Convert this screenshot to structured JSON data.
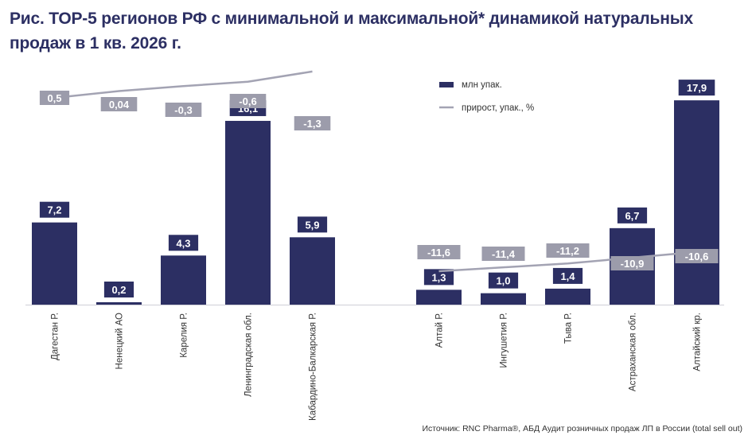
{
  "title": "Рис. ТОР-5 регионов РФ с минимальной и максимальной* динамикой  натуральных продаж в 1 кв. 2026 г.",
  "source": "Источник: RNC Pharma®, АБД Аудит розничных продаж ЛП в России (total sell out)",
  "colors": {
    "bar": "#2c2f63",
    "line": "#a3a3b3",
    "label_bar": "#2c2f63",
    "label_line": "#9c9cab"
  },
  "chart_data": {
    "type": "bar",
    "title": "Рис. ТОР-5 регионов РФ с минимальной и максимальной* динамикой  натуральных продаж в 1 кв. 2026 г.",
    "legend": {
      "placement": "top-right",
      "bar_name": "млн упак.",
      "line_name": "прирост, упак., %"
    },
    "grid": false,
    "groups": [
      {
        "categories": [
          "Дагестан Р.",
          "Ненецкий АО",
          "Карелия Р.",
          "Ленинградская обл.",
          "Кабардино-Балкарская Р."
        ],
        "values": [
          7.2,
          0.2,
          4.3,
          16.1,
          5.9
        ],
        "value_labels": [
          "7,2",
          "0,2",
          "4,3",
          "16,1",
          "5,9"
        ],
        "growth": [
          0.5,
          0.04,
          -0.3,
          -0.6,
          -1.3
        ],
        "growth_labels": [
          "0,5",
          "0,04",
          "-0,3",
          "-0,6",
          "-1,3"
        ]
      },
      {
        "categories": [
          "Алтай Р.",
          "Ингушетия Р.",
          "Тыва Р.",
          "Астраханская обл.",
          "Алтайский кр."
        ],
        "values": [
          1.3,
          1.0,
          1.4,
          6.7,
          17.9
        ],
        "value_labels": [
          "1,3",
          "1,0",
          "1,4",
          "6,7",
          "17,9"
        ],
        "growth": [
          -11.6,
          -11.4,
          -11.2,
          -10.9,
          -10.6
        ],
        "growth_labels": [
          "-11,6",
          "-11,4",
          "-11,2",
          "-10,9",
          "-10,6"
        ]
      }
    ],
    "series": [
      {
        "name": "млн упак.",
        "type": "bar"
      },
      {
        "name": "прирост, упак., %",
        "type": "line"
      }
    ]
  }
}
